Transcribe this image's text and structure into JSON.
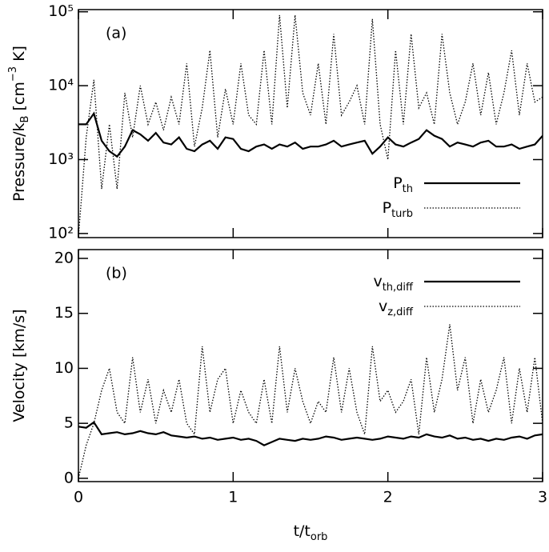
{
  "chart_data": [
    {
      "type": "line",
      "annotation": "(a)",
      "log_y": true,
      "ylabel": [
        {
          "text": "Pressure/k"
        },
        {
          "text": "B",
          "shift": "sub"
        },
        {
          "text": " [cm"
        },
        {
          "text": "−3",
          "shift": "super"
        },
        {
          "text": " K]"
        }
      ],
      "xlim": [
        0,
        3
      ],
      "ylim": [
        88,
        107000
      ],
      "yticks": [
        {
          "value": 100,
          "label": "10²"
        },
        {
          "value": 1000,
          "label": "10³"
        },
        {
          "value": 10000,
          "label": "10⁴"
        },
        {
          "value": 100000,
          "label": "10⁵"
        }
      ],
      "legend": "lower right",
      "x": [
        0,
        0.05,
        0.1,
        0.15,
        0.2,
        0.25,
        0.3,
        0.35,
        0.4,
        0.45,
        0.5,
        0.55,
        0.6,
        0.65,
        0.7,
        0.75,
        0.8,
        0.85,
        0.9,
        0.95,
        1,
        1.05,
        1.1,
        1.15,
        1.2,
        1.25,
        1.3,
        1.35,
        1.4,
        1.45,
        1.5,
        1.55,
        1.6,
        1.65,
        1.7,
        1.75,
        1.8,
        1.85,
        1.9,
        1.95,
        2,
        2.05,
        2.1,
        2.15,
        2.2,
        2.25,
        2.3,
        2.35,
        2.4,
        2.45,
        2.5,
        2.55,
        2.6,
        2.65,
        2.7,
        2.75,
        2.8,
        2.85,
        2.9,
        2.95,
        3
      ],
      "series": [
        {
          "name": [
            {
              "text": "P"
            },
            {
              "text": "th",
              "shift": "sub"
            }
          ],
          "color": "#000000",
          "style": "solid",
          "values": [
            3000,
            3000,
            4200,
            1800,
            1300,
            1100,
            1500,
            2500,
            2200,
            1800,
            2300,
            1700,
            1600,
            2000,
            1400,
            1300,
            1600,
            1800,
            1400,
            2000,
            1900,
            1400,
            1300,
            1500,
            1600,
            1400,
            1600,
            1500,
            1700,
            1400,
            1500,
            1500,
            1600,
            1800,
            1500,
            1600,
            1700,
            1800,
            1200,
            1500,
            2000,
            1600,
            1500,
            1700,
            1900,
            2500,
            2100,
            1900,
            1500,
            1700,
            1600,
            1500,
            1700,
            1800,
            1500,
            1500,
            1600,
            1400,
            1500,
            1600,
            2100
          ]
        },
        {
          "name": [
            {
              "text": "P"
            },
            {
              "text": "turb",
              "shift": "sub"
            }
          ],
          "color": "#000000",
          "style": "dotted",
          "values": [
            90,
            2000,
            12000,
            400,
            3000,
            400,
            8000,
            2000,
            10000,
            3000,
            6000,
            2500,
            7000,
            3000,
            20000,
            1500,
            5000,
            30000,
            2000,
            9000,
            3000,
            20000,
            4000,
            3000,
            30000,
            3000,
            90000,
            5000,
            90000,
            8000,
            4000,
            20000,
            3000,
            50000,
            4000,
            6000,
            10000,
            3000,
            80000,
            3000,
            1000,
            30000,
            3000,
            50000,
            5000,
            8000,
            3000,
            50000,
            8000,
            3000,
            6000,
            20000,
            4000,
            15000,
            3000,
            8000,
            30000,
            4000,
            20000,
            6000,
            7000
          ]
        }
      ]
    },
    {
      "type": "line",
      "annotation": "(b)",
      "ylabel": [
        {
          "text": "Velocity [km/s]"
        }
      ],
      "xlabel": [
        {
          "text": "t/t"
        },
        {
          "text": "orb",
          "shift": "sub"
        }
      ],
      "xlim": [
        0,
        3
      ],
      "ylim": [
        -0.3,
        20.8
      ],
      "xticks": [
        0,
        1,
        2,
        3
      ],
      "yticks": [
        0,
        5,
        10,
        15,
        20
      ],
      "legend": "upper right",
      "x": [
        0,
        0.05,
        0.1,
        0.15,
        0.2,
        0.25,
        0.3,
        0.35,
        0.4,
        0.45,
        0.5,
        0.55,
        0.6,
        0.65,
        0.7,
        0.75,
        0.8,
        0.85,
        0.9,
        0.95,
        1,
        1.05,
        1.1,
        1.15,
        1.2,
        1.25,
        1.3,
        1.35,
        1.4,
        1.45,
        1.5,
        1.55,
        1.6,
        1.65,
        1.7,
        1.75,
        1.8,
        1.85,
        1.9,
        1.95,
        2,
        2.05,
        2.1,
        2.15,
        2.2,
        2.25,
        2.3,
        2.35,
        2.4,
        2.45,
        2.5,
        2.55,
        2.6,
        2.65,
        2.7,
        2.75,
        2.8,
        2.85,
        2.9,
        2.95,
        3
      ],
      "series": [
        {
          "name": [
            {
              "text": "v"
            },
            {
              "text": "th,diff",
              "shift": "sub"
            }
          ],
          "color": "#000000",
          "style": "solid",
          "values": [
            4.7,
            4.6,
            5.1,
            4.0,
            4.1,
            4.2,
            4.0,
            4.1,
            4.3,
            4.1,
            4.0,
            4.2,
            3.9,
            3.8,
            3.7,
            3.8,
            3.6,
            3.7,
            3.5,
            3.6,
            3.7,
            3.5,
            3.6,
            3.4,
            3.0,
            3.3,
            3.6,
            3.5,
            3.4,
            3.6,
            3.5,
            3.6,
            3.8,
            3.7,
            3.5,
            3.6,
            3.7,
            3.6,
            3.5,
            3.6,
            3.8,
            3.7,
            3.6,
            3.8,
            3.7,
            4.0,
            3.8,
            3.7,
            3.9,
            3.6,
            3.7,
            3.5,
            3.6,
            3.4,
            3.6,
            3.5,
            3.7,
            3.8,
            3.6,
            3.9,
            4.0
          ]
        },
        {
          "name": [
            {
              "text": "v"
            },
            {
              "text": "z,diff",
              "shift": "sub"
            }
          ],
          "color": "#000000",
          "style": "dotted",
          "values": [
            0,
            3,
            5,
            8,
            10,
            6,
            5,
            11,
            6,
            9,
            5,
            8,
            6,
            9,
            5,
            4,
            12,
            6,
            9,
            10,
            5,
            8,
            6,
            5,
            9,
            5,
            12,
            6,
            10,
            7,
            5,
            7,
            6,
            11,
            6,
            10,
            6,
            4,
            12,
            7,
            8,
            6,
            7,
            9,
            4,
            11,
            6,
            9,
            14,
            8,
            11,
            5,
            9,
            6,
            8,
            11,
            5,
            10,
            6,
            11,
            5
          ]
        }
      ]
    }
  ]
}
